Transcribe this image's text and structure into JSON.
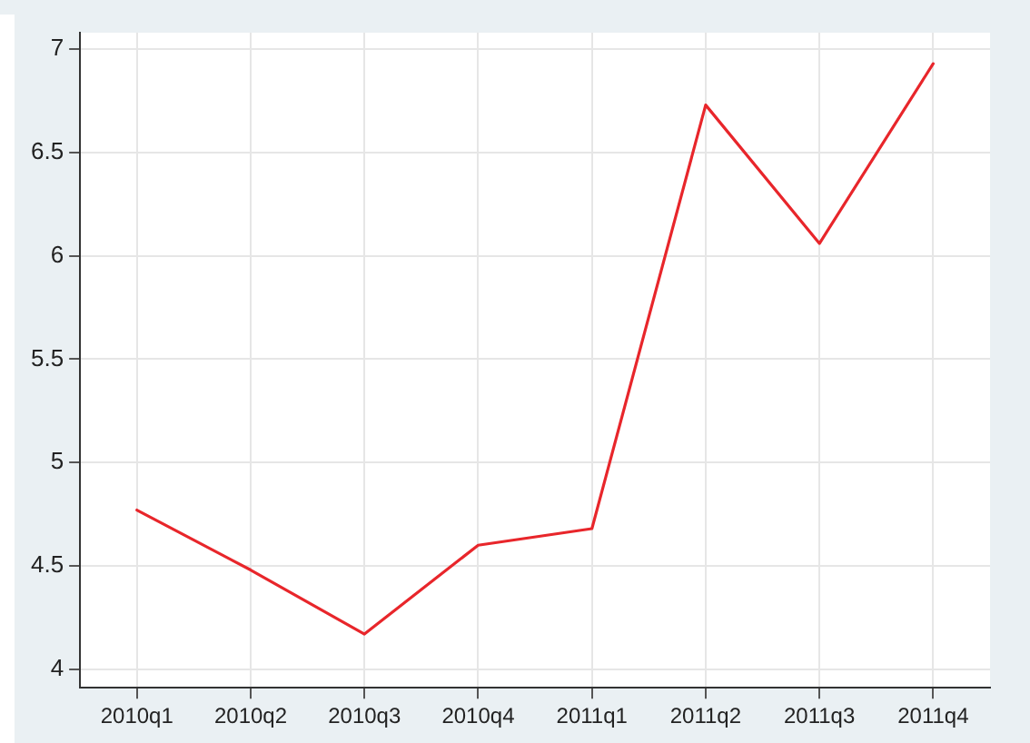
{
  "chart_data": {
    "type": "line",
    "categories": [
      "2010q1",
      "2010q2",
      "2010q3",
      "2010q4",
      "2011q1",
      "2011q2",
      "2011q3",
      "2011q4"
    ],
    "series": [
      {
        "color": "#e8262b",
        "values": [
          4.77,
          4.48,
          4.17,
          4.6,
          4.68,
          6.73,
          6.06,
          6.93
        ]
      }
    ],
    "ylim": [
      3.91,
      7.08
    ],
    "yticks": [
      4,
      4.5,
      5,
      5.5,
      6,
      6.5,
      7
    ],
    "grid": true,
    "legend": false,
    "marker": "none",
    "line_style": "solid"
  }
}
